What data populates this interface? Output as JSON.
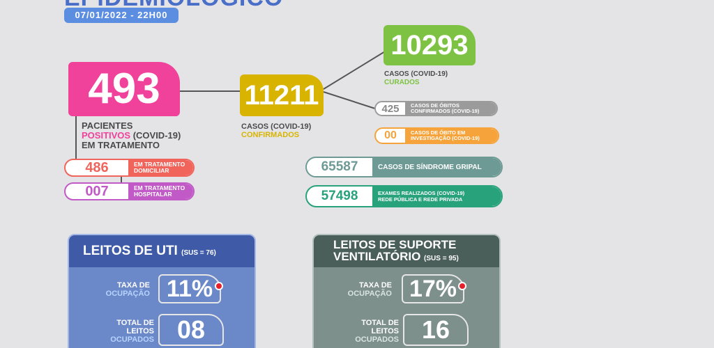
{
  "header": {
    "title_fragment": "EPIDEMIOLÓGICO",
    "date": "07/01/2022 - 22H00"
  },
  "patients": {
    "value": "493",
    "caption_line1": "PACIENTES",
    "caption_positivos": "POSITIVOS",
    "caption_covid": " (COVID-19)",
    "caption_line3": "EM TRATAMENTO",
    "home": {
      "value": "486",
      "label_line1": "EM TRATAMENTO",
      "label_line2": "DOMICILIAR"
    },
    "hospital": {
      "value": "007",
      "label_line1": "EM TRATAMENTO",
      "label_line2": "HOSPITALAR"
    }
  },
  "confirmed": {
    "value": "11211",
    "caption_line1": "CASOS (COVID-19)",
    "caption_line2": "CONFIRMADOS"
  },
  "recovered": {
    "value": "10293",
    "caption_line1": "CASOS (COVID-19)",
    "caption_line2": "CURADOS"
  },
  "deaths": {
    "value": "425",
    "label_line1": "CASOS DE ÓBITOS",
    "label_line2": "CONFIRMADOS (COVID-19)"
  },
  "deaths_investigation": {
    "value": "00",
    "label_line1": "CASOS DE ÓBITO EM",
    "label_line2": "INVESTIGAÇÃO (COVID-19)"
  },
  "flu_syndrome": {
    "value": "65587",
    "label": "CASOS DE SÍNDROME GRIPAL"
  },
  "exams": {
    "value": "57498",
    "label_line1": "EXAMES REALIZADOS (COVID-19)",
    "label_line2": "REDE PÚBLICA E REDE PRIVADA"
  },
  "uti_panel": {
    "title": "LEITOS DE UTI",
    "sus": "(SUS = 76)",
    "rate_label_line1": "TAXA DE",
    "rate_label_line2": "OCUPAÇÃO",
    "rate_value": "11%",
    "total_label_line1": "TOTAL DE",
    "total_label_line2": "LEITOS",
    "total_label_line3": "OCUPADOS",
    "total_value": "08"
  },
  "sv_panel": {
    "title_line1": "LEITOS DE SUPORTE",
    "title_line2": "VENTILATÓRIO",
    "sus": "(SUS = 95)",
    "rate_label_line1": "TAXA DE",
    "rate_label_line2": "OCUPAÇÃO",
    "rate_value": "17%",
    "total_label_line1": "TOTAL DE",
    "total_label_line2": "LEITOS",
    "total_label_line3": "OCUPADOS",
    "total_value": "16"
  },
  "colors": {
    "patients": "#f0419b",
    "confirmed": "#d8b400",
    "recovered": "#7dc242",
    "home": "#f0645b",
    "hospital": "#c159c6",
    "deaths": "#9b9b9b",
    "investigation": "#f5a33a",
    "flu": "#6e9a95",
    "exams": "#27a27a",
    "uti": "#3f5ba8",
    "support": "#4a5e5a",
    "alert_dot": "#e5202b"
  }
}
